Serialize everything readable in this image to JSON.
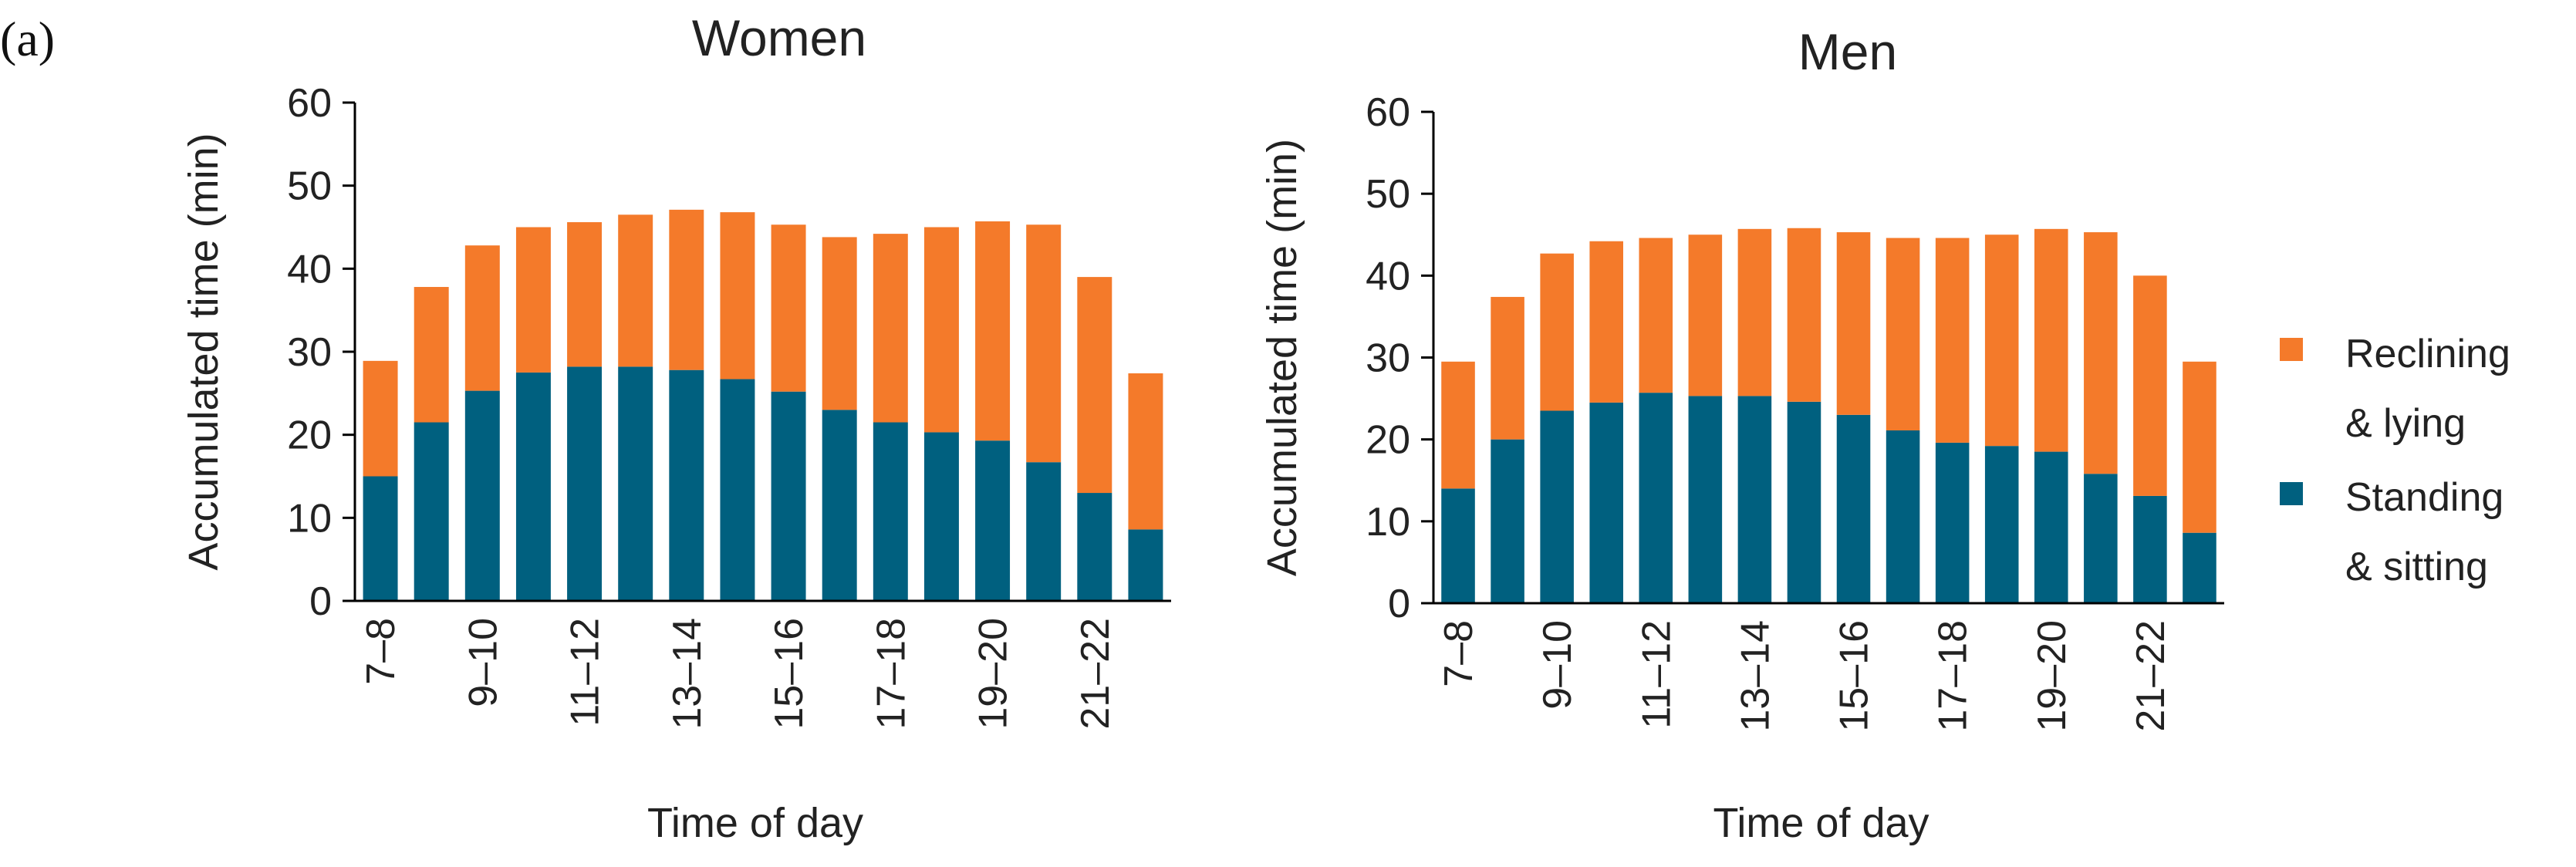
{
  "figure": {
    "panel_label": "(a)"
  },
  "legend": {
    "items": [
      {
        "lines": [
          "Reclining",
          "& lying"
        ],
        "color": "#f47a2a"
      },
      {
        "lines": [
          "Standing",
          "& sitting"
        ],
        "color": "#00607f"
      }
    ]
  },
  "chart_data": [
    {
      "type": "bar",
      "stacked": true,
      "title": "Women",
      "xlabel": "Time of day",
      "ylabel": "Accumulated time (min)",
      "ylim": [
        0,
        60
      ],
      "yticks": [
        0,
        10,
        20,
        30,
        40,
        50,
        60
      ],
      "categories": [
        "7–8",
        "8–9",
        "9–10",
        "10–11",
        "11–12",
        "12–13",
        "13–14",
        "14–15",
        "15–16",
        "16–17",
        "17–18",
        "18–19",
        "19–20",
        "20–21",
        "21–22",
        "22–23"
      ],
      "tick_labels": [
        "7–8",
        "9–10",
        "11–12",
        "13–14",
        "15–16",
        "17–18",
        "19–20",
        "21–22"
      ],
      "series": [
        {
          "name": "Standing & sitting",
          "color": "#00607f",
          "values": [
            15,
            21.5,
            25.3,
            27.5,
            28.2,
            28.2,
            27.8,
            26.7,
            25.2,
            23,
            21.5,
            20.3,
            19.3,
            16.7,
            13,
            8.6
          ]
        },
        {
          "name": "Reclining & lying",
          "color": "#f47a2a",
          "values": [
            13.9,
            16.3,
            17.5,
            17.5,
            17.4,
            18.3,
            19.3,
            20.1,
            20.1,
            20.8,
            22.7,
            24.7,
            26.4,
            28.6,
            26,
            18.8
          ]
        }
      ]
    },
    {
      "type": "bar",
      "stacked": true,
      "title": "Men",
      "xlabel": "Time of day",
      "ylabel": "Accumulated time (min)",
      "ylim": [
        0,
        60
      ],
      "yticks": [
        0,
        10,
        20,
        30,
        40,
        50,
        60
      ],
      "categories": [
        "7–8",
        "8–9",
        "9–10",
        "10–11",
        "11–12",
        "12–13",
        "13–14",
        "14–15",
        "15–16",
        "16–17",
        "17–18",
        "18–19",
        "19–20",
        "20–21",
        "21–22",
        "22–23"
      ],
      "tick_labels": [
        "7–8",
        "9–10",
        "11–12",
        "13–14",
        "15–16",
        "17–18",
        "19–20",
        "21–22"
      ],
      "series": [
        {
          "name": "Standing & sitting",
          "color": "#00607f",
          "values": [
            14,
            20,
            23.5,
            24.5,
            25.7,
            25.3,
            25.3,
            24.6,
            23,
            21.1,
            19.6,
            19.2,
            18.5,
            15.8,
            13.1,
            8.6
          ]
        },
        {
          "name": "Reclining & lying",
          "color": "#f47a2a",
          "values": [
            15.5,
            17.4,
            19.2,
            19.7,
            18.9,
            19.7,
            20.4,
            21.2,
            22.3,
            23.5,
            25,
            25.8,
            27.2,
            29.5,
            26.9,
            20.9
          ]
        }
      ]
    }
  ]
}
